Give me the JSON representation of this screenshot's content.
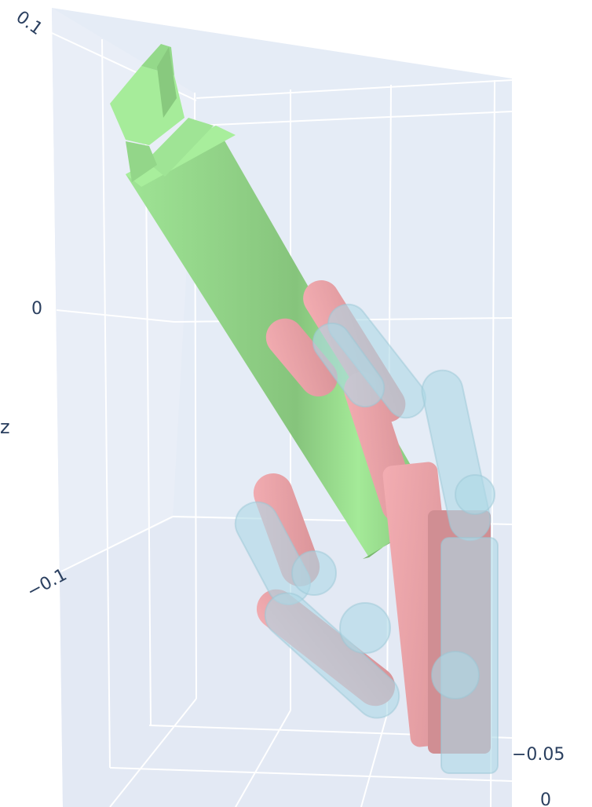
{
  "chart_data": {
    "type": "3d-mesh",
    "title": "",
    "scene": {
      "background": "#e5ecf6",
      "gridline_color": "#ffffff",
      "z_axis": {
        "title": "z",
        "ticks": [
          "0.1",
          "0",
          "−0.1"
        ]
      },
      "y_axis": {
        "title": "",
        "ticks": [
          "−0.05",
          "0"
        ]
      }
    },
    "series": [
      {
        "object": "bottle",
        "color": "#90ee90"
      },
      {
        "object": "hand",
        "color": "#f4a6ad"
      },
      {
        "object": "hand",
        "color": "#add8e6",
        "opacity": 0.6
      }
    ]
  }
}
